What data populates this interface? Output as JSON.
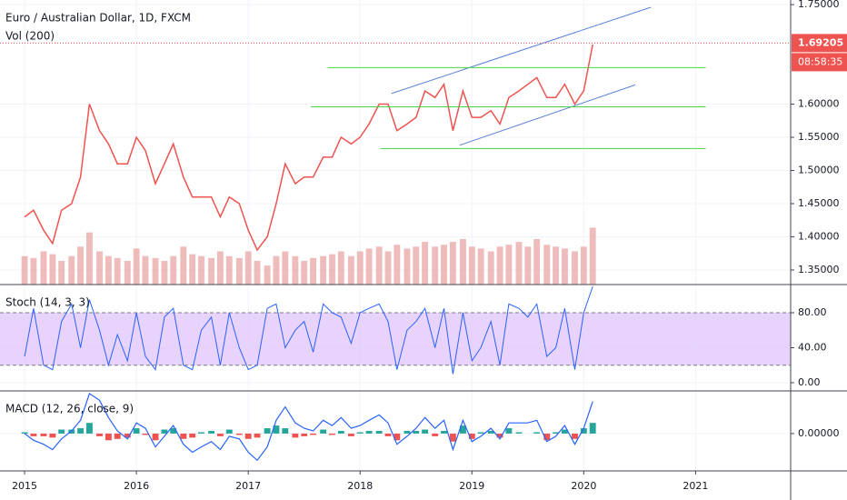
{
  "chart_data": [
    {
      "type": "line",
      "title": "Euro / Australian Dollar, 1D, FXCM",
      "x": [
        2015.0,
        2015.08,
        2015.17,
        2015.25,
        2015.33,
        2015.42,
        2015.5,
        2015.58,
        2015.67,
        2015.75,
        2015.83,
        2015.92,
        2016.0,
        2016.08,
        2016.17,
        2016.25,
        2016.33,
        2016.42,
        2016.5,
        2016.58,
        2016.67,
        2016.75,
        2016.83,
        2016.92,
        2017.0,
        2017.08,
        2017.17,
        2017.25,
        2017.33,
        2017.42,
        2017.5,
        2017.58,
        2017.67,
        2017.75,
        2017.83,
        2017.92,
        2018.0,
        2018.08,
        2018.17,
        2018.25,
        2018.33,
        2018.42,
        2018.5,
        2018.58,
        2018.67,
        2018.75,
        2018.83,
        2018.92,
        2019.0,
        2019.08,
        2019.17,
        2019.25,
        2019.33,
        2019.42,
        2019.5,
        2019.58,
        2019.67,
        2019.75,
        2019.83,
        2019.92,
        2020.0,
        2020.08
      ],
      "series": [
        {
          "color": "#ef5350",
          "values": [
            1.43,
            1.44,
            1.41,
            1.39,
            1.44,
            1.45,
            1.49,
            1.6,
            1.56,
            1.54,
            1.51,
            1.51,
            1.55,
            1.53,
            1.48,
            1.51,
            1.54,
            1.49,
            1.46,
            1.46,
            1.46,
            1.43,
            1.46,
            1.45,
            1.41,
            1.38,
            1.4,
            1.45,
            1.51,
            1.48,
            1.49,
            1.49,
            1.52,
            1.52,
            1.55,
            1.54,
            1.55,
            1.57,
            1.6,
            1.6,
            1.56,
            1.57,
            1.58,
            1.62,
            1.61,
            1.63,
            1.56,
            1.62,
            1.58,
            1.58,
            1.59,
            1.57,
            1.61,
            1.62,
            1.63,
            1.64,
            1.61,
            1.61,
            1.63,
            1.6,
            1.62,
            1.69
          ]
        },
        {
          "name": "Vol (200)",
          "color": "#e8a0a0",
          "vlim": [
            0,
            300
          ],
          "values": [
            30,
            28,
            35,
            32,
            25,
            30,
            40,
            55,
            35,
            30,
            28,
            25,
            38,
            30,
            28,
            25,
            30,
            40,
            32,
            30,
            28,
            35,
            30,
            28,
            35,
            25,
            20,
            30,
            35,
            30,
            25,
            28,
            30,
            32,
            35,
            30,
            35,
            38,
            40,
            35,
            42,
            38,
            40,
            45,
            40,
            42,
            45,
            48,
            40,
            38,
            35,
            40,
            42,
            45,
            40,
            48,
            42,
            40,
            38,
            35,
            40,
            60
          ]
        }
      ],
      "last_price": {
        "value": 1.69205,
        "label": "1.69205"
      },
      "countdown": "08:58:35",
      "trendlines": [
        {
          "color": "#5b7fd6",
          "x": [
            2018.28,
            2020.6
          ],
          "y": [
            1.616,
            1.746
          ]
        },
        {
          "color": "#5b7fd6",
          "x": [
            2018.89,
            2020.46
          ],
          "y": [
            1.538,
            1.629
          ]
        },
        {
          "color": "#45d645",
          "x": [
            2017.71,
            2021.09
          ],
          "y": [
            1.655,
            1.655
          ]
        },
        {
          "color": "#45d645",
          "x": [
            2017.56,
            2021.09
          ],
          "y": [
            1.596,
            1.596
          ]
        },
        {
          "color": "#45d645",
          "x": [
            2018.18,
            2021.09
          ],
          "y": [
            1.533,
            1.533
          ]
        }
      ],
      "xlim": [
        2014.78,
        2021.85
      ],
      "xticks": [
        2015,
        2016,
        2017,
        2018,
        2019,
        2020,
        2021
      ],
      "ylim": [
        1.328,
        1.757
      ],
      "yticks": [
        {
          "value": 1.35,
          "label": "1.35000"
        },
        {
          "value": 1.4,
          "label": "1.40000"
        },
        {
          "value": 1.45,
          "label": "1.45000"
        },
        {
          "value": 1.5,
          "label": "1.50000"
        },
        {
          "value": 1.55,
          "label": "1.55000"
        },
        {
          "value": 1.6,
          "label": "1.60000"
        },
        {
          "value": 1.75,
          "label": "1.75000"
        }
      ]
    },
    {
      "type": "line",
      "title": "Stoch (14, 3, 3)",
      "series": [
        {
          "color": "#2962ff",
          "values": [
            30,
            85,
            20,
            15,
            70,
            90,
            40,
            95,
            60,
            20,
            55,
            25,
            80,
            30,
            15,
            75,
            85,
            20,
            15,
            60,
            75,
            20,
            80,
            40,
            15,
            20,
            85,
            90,
            40,
            60,
            70,
            35,
            90,
            80,
            75,
            45,
            80,
            85,
            90,
            70,
            15,
            60,
            70,
            85,
            40,
            85,
            10,
            80,
            25,
            40,
            70,
            20,
            90,
            85,
            75,
            90,
            30,
            40,
            85,
            15,
            80,
            110
          ]
        }
      ],
      "band": [
        20,
        80
      ],
      "band_color": "#e1c8fb",
      "ylim": [
        -9.35,
        112.2
      ],
      "yticks": [
        {
          "value": 0,
          "label": "0.00"
        },
        {
          "value": 40,
          "label": "40.00"
        },
        {
          "value": 80,
          "label": "80.00"
        }
      ]
    },
    {
      "type": "macd",
      "title": "MACD (12, 26, close, 9)",
      "series": [
        {
          "color": "#2962ff",
          "values": [
            0,
            -0.005,
            -0.008,
            -0.012,
            -0.004,
            0.002,
            0.01,
            0.03,
            0.025,
            0.012,
            0.002,
            -0.004,
            0.008,
            0.004,
            -0.01,
            -0.002,
            0.006,
            -0.008,
            -0.014,
            -0.01,
            -0.006,
            -0.012,
            -0.002,
            -0.004,
            -0.014,
            -0.02,
            -0.01,
            0.01,
            0.02,
            0.008,
            0.004,
            0.002,
            0.01,
            0.006,
            0.012,
            0.004,
            0.006,
            0.01,
            0.014,
            0.008,
            -0.008,
            -0.002,
            0.004,
            0.012,
            0.004,
            0.01,
            -0.012,
            0.01,
            -0.006,
            -0.002,
            0.004,
            -0.004,
            0.008,
            0.008,
            0.008,
            0.01,
            -0.006,
            -0.002,
            0.006,
            -0.008,
            0.004,
            0.024
          ]
        },
        {
          "color": "#ef5350",
          "values": [
            0.001,
            -0.002,
            -0.002,
            -0.003,
            0.003,
            0.003,
            0.004,
            0.008,
            -0.002,
            -0.005,
            -0.004,
            -0.003,
            0.004,
            -0.001,
            -0.005,
            0.003,
            0.004,
            -0.004,
            -0.003,
            0.001,
            0.002,
            -0.002,
            0.003,
            -0.001,
            -0.004,
            -0.003,
            0.004,
            0.006,
            0.004,
            -0.003,
            -0.002,
            -0.001,
            0.003,
            -0.001,
            0.002,
            -0.002,
            0.001,
            0.002,
            0.002,
            -0.002,
            -0.005,
            0.002,
            0.002,
            0.003,
            -0.002,
            0.002,
            -0.006,
            0.006,
            -0.004,
            0.001,
            0.002,
            -0.003,
            0.004,
            0.001,
            0,
            0.001,
            -0.005,
            0.001,
            0.003,
            -0.004,
            0.004,
            0.008
          ]
        }
      ],
      "ylim": [
        -0.028,
        0.032
      ],
      "yticks": [
        {
          "value": 0,
          "label": "0.00000"
        }
      ]
    }
  ]
}
